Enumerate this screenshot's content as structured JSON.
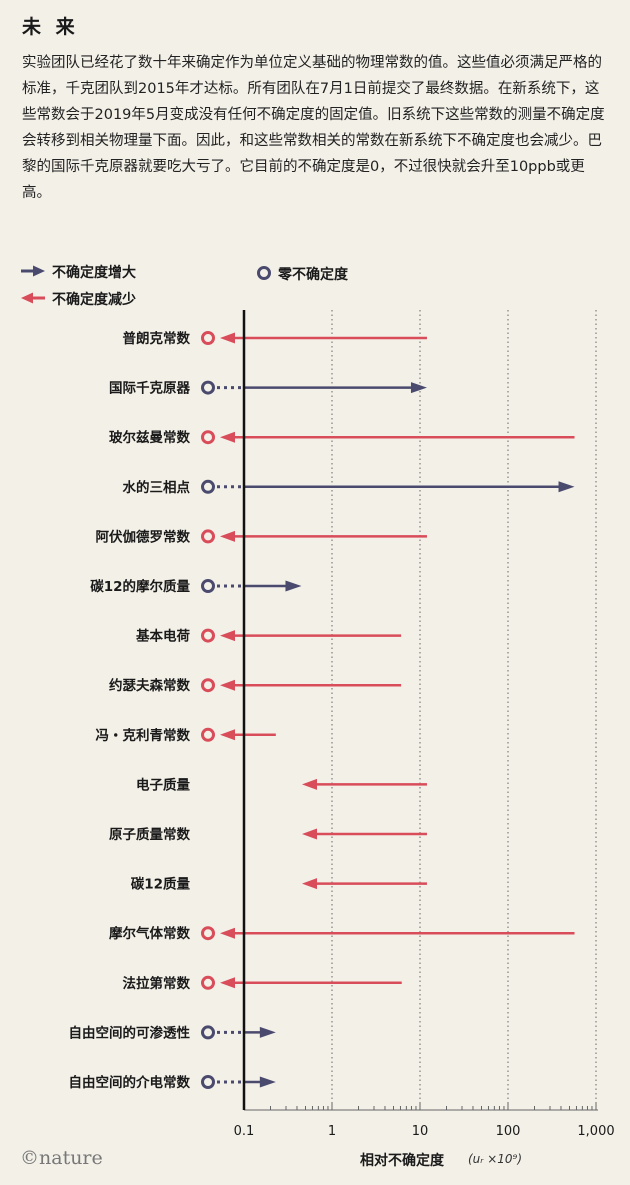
{
  "header": {
    "title": "未 来",
    "intro": "实验团队已经花了数十年来确定作为单位定义基础的物理常数的值。这些值必须满足严格的标准，千克团队到2015年才达标。所有团队在7月1日前提交了最终数据。在新系统下，这些常数会于2019年5月变成没有任何不确定度的固定值。旧系统下这些常数的测量不确定度会转移到相关物理量下面。因此，和这些常数相关的常数在新系统下不确定度也会减少。巴黎的国际千克原器就要吃大亏了。它目前的不确定度是0，不过很快就会升至10ppb或更高。"
  },
  "legend": {
    "increase": "不确定度增大",
    "decrease": "不确定度减少",
    "zero": "零不确定度"
  },
  "colors": {
    "increase": "#4a4a6e",
    "decrease": "#d94c5a",
    "axis": "#111111",
    "grid": "#666666"
  },
  "chart_data": {
    "type": "arrow",
    "x_scale": "log",
    "xlim": [
      0.1,
      1000
    ],
    "xticks": [
      0.1,
      1,
      10,
      100,
      1000
    ],
    "xtick_labels": [
      "0.1",
      "1",
      "10",
      "100",
      "1,000"
    ],
    "xlabel": "相对不确定度",
    "xlabel_unit": "(uᵣ ×10⁹)",
    "rows": [
      {
        "name": "普朗克常数",
        "direction": "decrease",
        "from": 12,
        "to": 0,
        "zero": true
      },
      {
        "name": "国际千克原器",
        "direction": "increase",
        "from": 0,
        "to": 12,
        "zero": true
      },
      {
        "name": "玻尔兹曼常数",
        "direction": "decrease",
        "from": 570,
        "to": 0,
        "zero": true
      },
      {
        "name": "水的三相点",
        "direction": "increase",
        "from": 0,
        "to": 570,
        "zero": true
      },
      {
        "name": "阿伏伽德罗常数",
        "direction": "decrease",
        "from": 12,
        "to": 0,
        "zero": true
      },
      {
        "name": "碳12的摩尔质量",
        "direction": "increase",
        "from": 0,
        "to": 0.45,
        "zero": true
      },
      {
        "name": "基本电荷",
        "direction": "decrease",
        "from": 6.1,
        "to": 0,
        "zero": true
      },
      {
        "name": "约瑟夫森常数",
        "direction": "decrease",
        "from": 6.1,
        "to": 0,
        "zero": true
      },
      {
        "name": "冯・克利青常数",
        "direction": "decrease",
        "from": 0.23,
        "to": 0,
        "zero": true
      },
      {
        "name": "电子质量",
        "direction": "decrease",
        "from": 12,
        "to": 0.45,
        "zero": false
      },
      {
        "name": "原子质量常数",
        "direction": "decrease",
        "from": 12,
        "to": 0.45,
        "zero": false
      },
      {
        "name": "碳12质量",
        "direction": "decrease",
        "from": 12,
        "to": 0.45,
        "zero": false
      },
      {
        "name": "摩尔气体常数",
        "direction": "decrease",
        "from": 570,
        "to": 0,
        "zero": true
      },
      {
        "name": "法拉第常数",
        "direction": "decrease",
        "from": 6.2,
        "to": 0,
        "zero": true
      },
      {
        "name": "自由空间的可渗透性",
        "direction": "increase",
        "from": 0,
        "to": 0.23,
        "zero": true
      },
      {
        "name": "自由空间的介电常数",
        "direction": "increase",
        "from": 0,
        "to": 0.23,
        "zero": true
      }
    ]
  },
  "footer": {
    "credit": "©nature"
  }
}
